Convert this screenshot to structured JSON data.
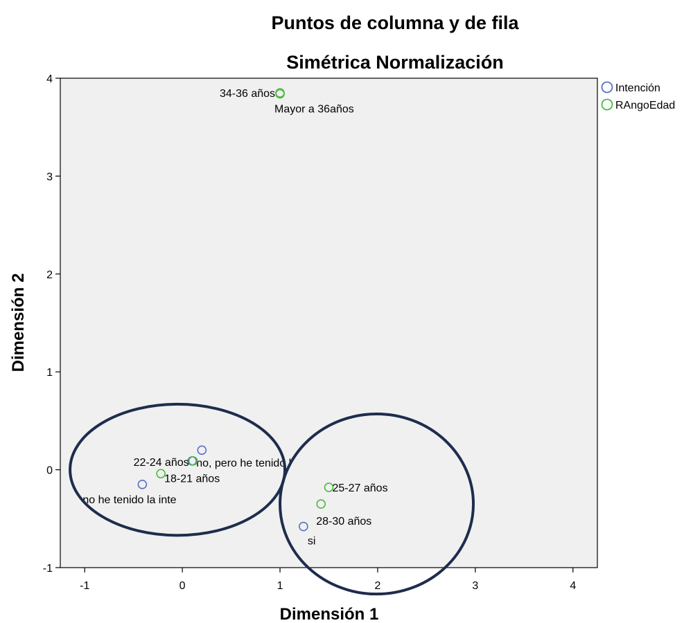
{
  "chart_data": {
    "type": "scatter",
    "title": "Puntos de columna y de fila",
    "subtitle": "Simétrica Normalización",
    "xlabel": "Dimensión 1",
    "ylabel": "Dimensión 2",
    "xlim": [
      -1.25,
      4.25
    ],
    "ylim": [
      -1,
      4
    ],
    "x_ticks": [
      -1,
      0,
      1,
      2,
      3,
      4
    ],
    "y_ticks": [
      -1,
      0,
      1,
      2,
      3,
      4
    ],
    "x_tick_labels": [
      "-1",
      "0",
      "1",
      "2",
      "3",
      "4"
    ],
    "y_tick_labels": [
      "-1",
      "0",
      "1",
      "2",
      "3",
      "4"
    ],
    "grid": false,
    "legend_position": "right",
    "series": [
      {
        "name": "Intención",
        "color": "#5b6fc4",
        "marker": "open-circle",
        "points": [
          {
            "x": 0.2,
            "y": 0.2,
            "label": ""
          },
          {
            "x": 0.1,
            "y": 0.09,
            "label": "no, pero he tenido l"
          },
          {
            "x": -0.41,
            "y": -0.15,
            "label": "no he tenido la inte"
          },
          {
            "x": 1.24,
            "y": -0.58,
            "label": "si"
          }
        ]
      },
      {
        "name": "RAngoEdad",
        "color": "#4cba3f",
        "marker": "open-circle",
        "points": [
          {
            "x": 1.0,
            "y": 3.85,
            "label": "34-36 años"
          },
          {
            "x": 1.0,
            "y": 3.84,
            "label": "Mayor a 36años"
          },
          {
            "x": 0.11,
            "y": 0.09,
            "label": "22-24 años"
          },
          {
            "x": -0.22,
            "y": -0.04,
            "label": "18-21 años"
          },
          {
            "x": 1.5,
            "y": -0.18,
            "label": "25-27 años"
          },
          {
            "x": 1.42,
            "y": -0.35,
            "label": "28-30 años"
          }
        ]
      }
    ],
    "annotations": [
      {
        "shape": "ellipse",
        "cx": -0.05,
        "cy": 0.0,
        "rx": 1.1,
        "ry": 0.67,
        "color": "#1e2d4d"
      },
      {
        "shape": "ellipse",
        "cx": 1.99,
        "cy": -0.35,
        "rx": 0.99,
        "ry": 0.92,
        "color": "#1e2d4d"
      }
    ]
  }
}
